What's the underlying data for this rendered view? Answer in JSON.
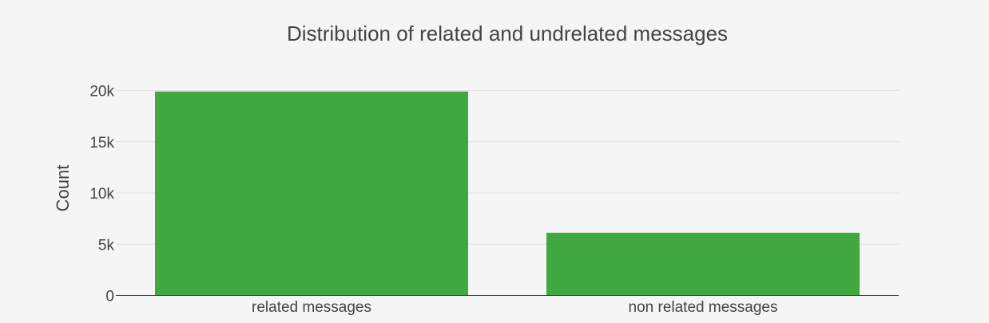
{
  "chart_data": {
    "type": "bar",
    "title": "Distribution of related and undrelated messages",
    "xlabel": "",
    "ylabel": "Count",
    "categories": [
      "related messages",
      "non related messages"
    ],
    "values": [
      19906,
      6122
    ],
    "ylim": [
      0,
      20000
    ],
    "yticks": [
      0,
      5000,
      10000,
      15000,
      20000
    ],
    "ytick_labels": [
      "0",
      "5k",
      "10k",
      "15k",
      "20k"
    ],
    "grid": true,
    "legend": "none",
    "bar_color": "#2ca02c",
    "background_color": "#f5f5f5"
  }
}
